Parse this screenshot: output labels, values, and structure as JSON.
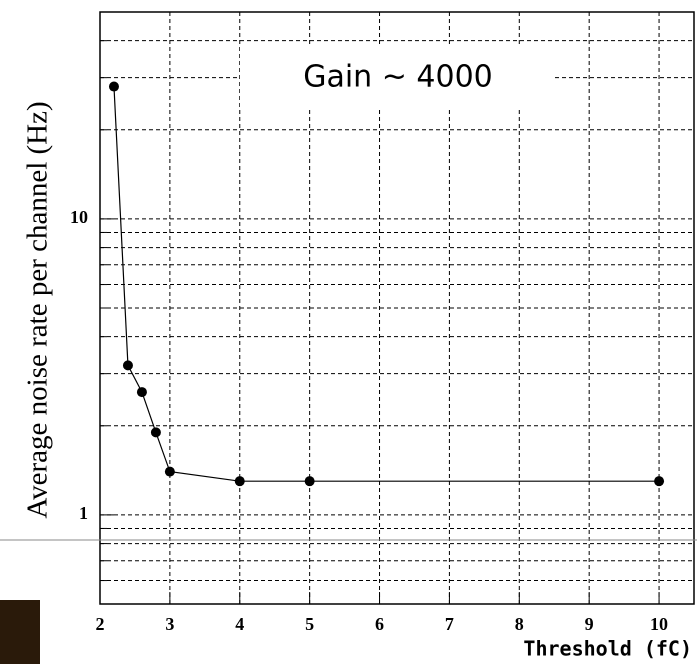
{
  "chart_data": {
    "type": "line",
    "annotation": "Gain ~ 4000",
    "x_label": "Threshold (fC)",
    "y_label": "Average noise rate per channel (Hz)",
    "series": [
      {
        "color": "#000000",
        "x": [
          2.2,
          2.4,
          2.6,
          2.8,
          3,
          4,
          5,
          10
        ],
        "values": [
          28,
          3.2,
          2.6,
          1.9,
          1.4,
          1.3,
          1.3,
          1.3
        ]
      }
    ],
    "xlim": [
      2,
      10.5
    ],
    "xticks": [
      2,
      3,
      4,
      5,
      6,
      7,
      8,
      9,
      10
    ],
    "ylim": [
      0.5,
      50
    ],
    "yticks": [
      1,
      10
    ],
    "yminor": [
      0.6,
      0.7,
      0.8,
      0.9,
      2,
      3,
      4,
      5,
      6,
      7,
      8,
      9,
      20,
      30,
      40
    ],
    "log_y": true,
    "grid": true
  }
}
